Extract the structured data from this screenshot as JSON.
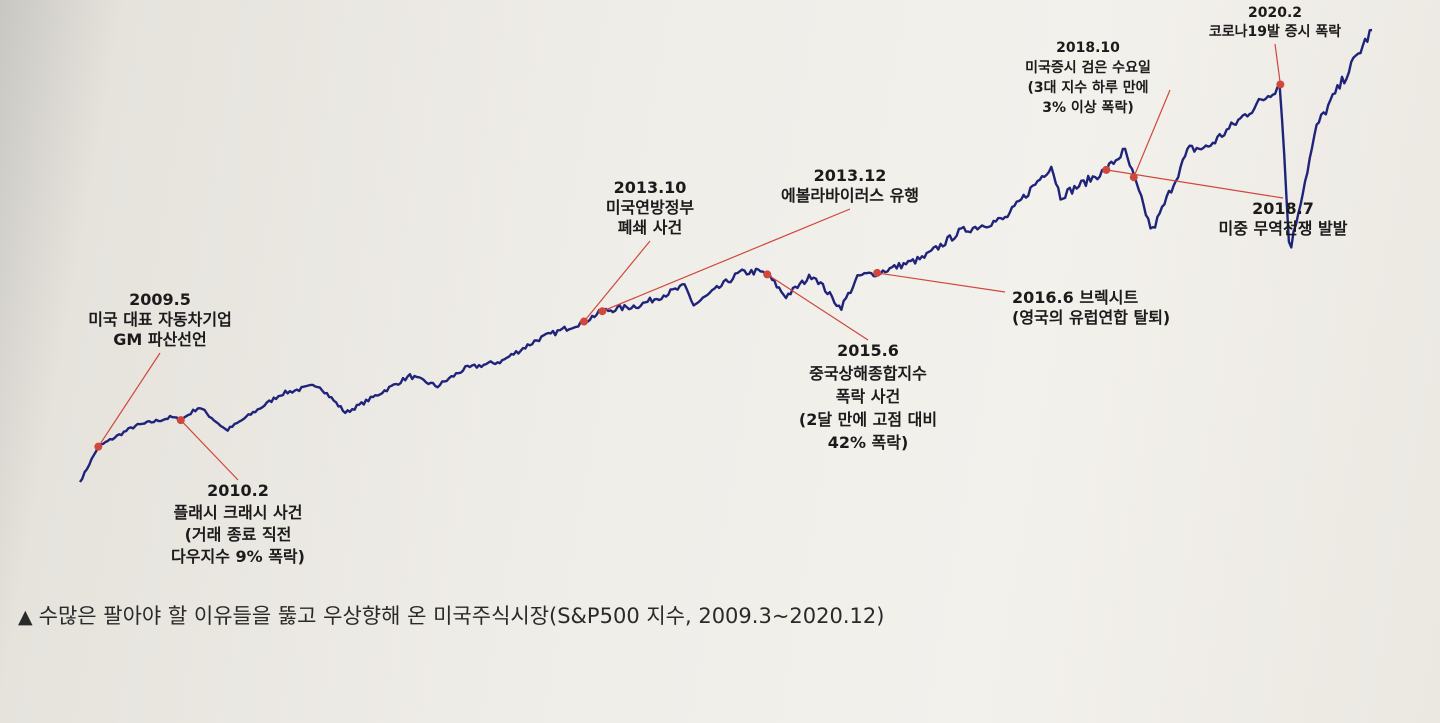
{
  "chart_data": {
    "type": "line",
    "series": [
      {
        "x": [
          "2009.3",
          "2009.5",
          "2009.9",
          "2010.1",
          "2010.2",
          "2010.4",
          "2010.7",
          "2011.1",
          "2011.5",
          "2011.8",
          "2011.10",
          "2012.3",
          "2012.6",
          "2012.9",
          "2013.1",
          "2013.5",
          "2013.10",
          "2013.12",
          "2014.4",
          "2014.9",
          "2014.10",
          "2015.3",
          "2015.5",
          "2015.6",
          "2015.8",
          "2015.11",
          "2016.2",
          "2016.4",
          "2016.6",
          "2016.11",
          "2017.3",
          "2017.8",
          "2018.1",
          "2018.2",
          "2018.7",
          "2018.9",
          "2018.10",
          "2018.12",
          "2019.4",
          "2019.6",
          "2020.2",
          "2020.3",
          "2020.6",
          "2020.12"
        ],
        "values": [
          680,
          920,
          1060,
          1120,
          1100,
          1190,
          1030,
          1280,
          1340,
          1150,
          1220,
          1400,
          1330,
          1450,
          1500,
          1650,
          1770,
          1840,
          1880,
          2010,
          1880,
          2100,
          2110,
          2090,
          1940,
          2090,
          1860,
          2080,
          2100,
          2200,
          2380,
          2470,
          2830,
          2620,
          2800,
          2930,
          2750,
          2380,
          2940,
          2950,
          3380,
          2240,
          3100,
          3750
        ]
      }
    ],
    "annotations": [
      {
        "x": "2009.5",
        "lines": [
          "2009.5",
          "미국 대표 자동차기업",
          "GM 파산선언"
        ]
      },
      {
        "x": "2010.2",
        "lines": [
          "2010.2",
          "플래시 크래시 사건",
          "(거래 종료 직전",
          "다우지수 9% 폭락)"
        ]
      },
      {
        "x": "2013.10",
        "lines": [
          "2013.10",
          "미국연방정부",
          "폐쇄 사건"
        ]
      },
      {
        "x": "2013.12",
        "lines": [
          "2013.12",
          "에볼라바이러스 유행"
        ]
      },
      {
        "x": "2015.6",
        "lines": [
          "2015.6",
          "중국상해종합지수",
          "폭락 사건",
          "(2달 만에 고점 대비",
          "42% 폭락)"
        ]
      },
      {
        "x": "2016.6",
        "lines": [
          "2016.6 브렉시트",
          "(영국의 유럽연합 탈퇴)"
        ]
      },
      {
        "x": "2018.7",
        "lines": [
          "2018.7",
          "미중 무역전쟁 발발"
        ]
      },
      {
        "x": "2018.10",
        "lines": [
          "2018.10",
          "미국증시 검은 수요일",
          "(3대 지수 하루 만에",
          "3% 이상 폭락)"
        ]
      },
      {
        "x": "2020.2",
        "lines": [
          "2020.2",
          "코로나19발 증시 폭락"
        ]
      }
    ],
    "caption": "수많은 팔아야 할 이유들을 뚫고 우상향해 온 미국주식시장(S&P500 지수, 2009.3~2020.12)",
    "line_color": "#1f237a",
    "marker_color": "#d0473c"
  },
  "caption": {
    "marker": "▲",
    "text": "수많은 팔아야 할 이유들을 뚫고 우상향해 온 미국주식시장(S&P500 지수, 2009.3~2020.12)"
  }
}
